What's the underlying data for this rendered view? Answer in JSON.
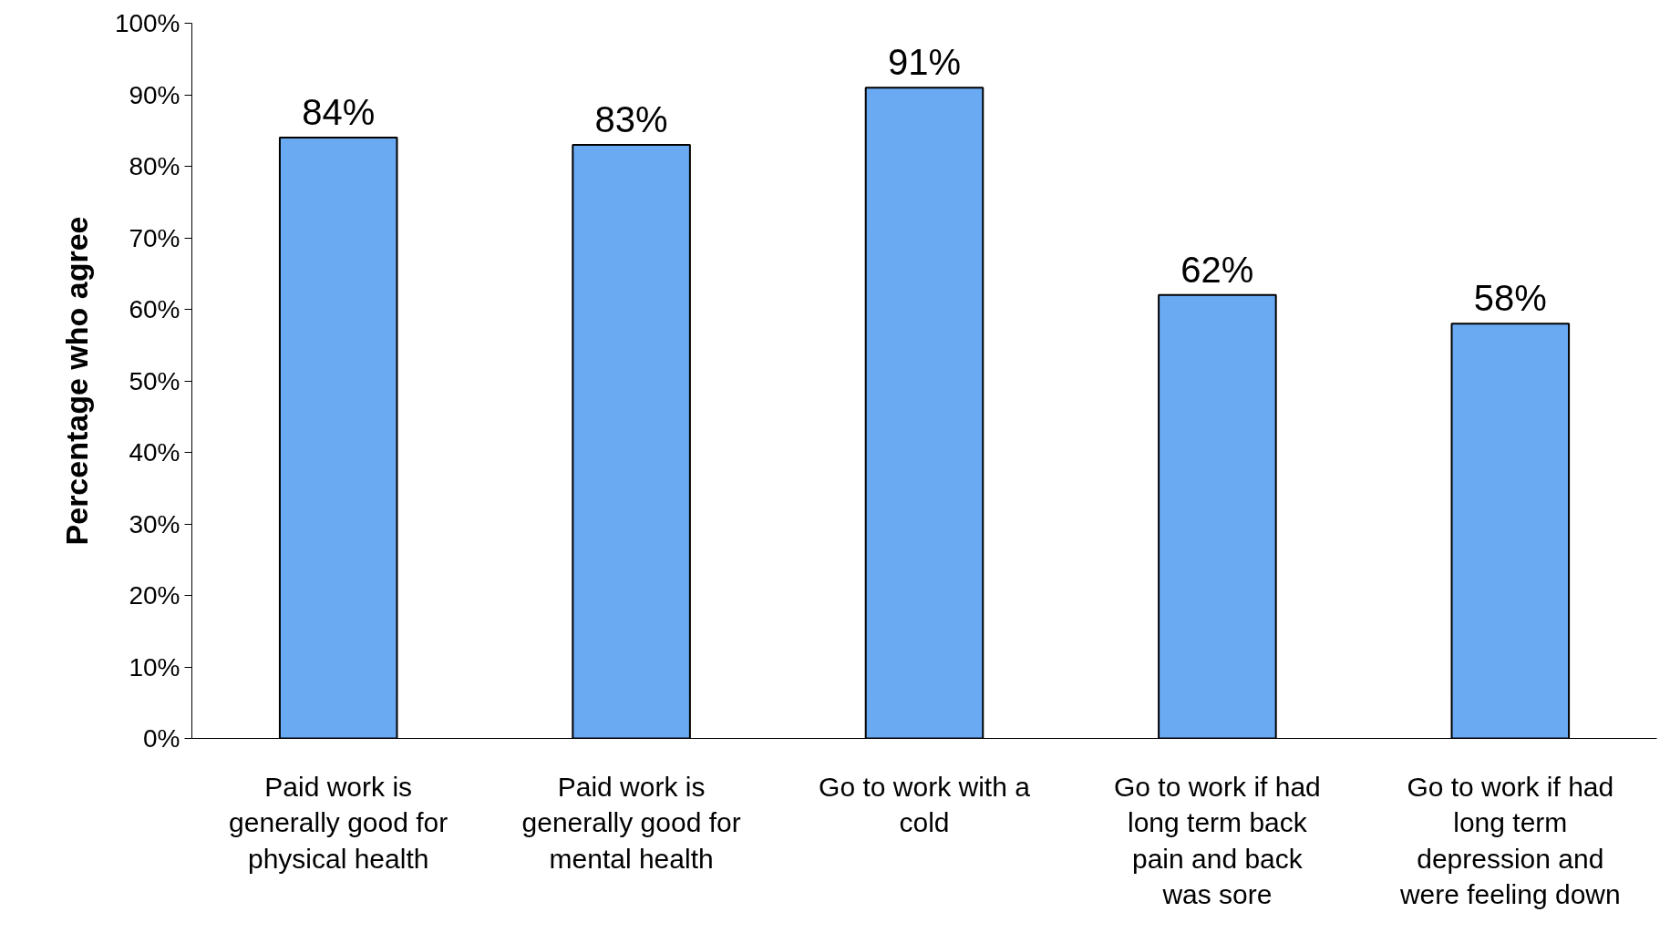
{
  "chart_data": {
    "type": "bar",
    "ylabel": "Percentage who agree",
    "categories": [
      "Paid work is\ngenerally good for\nphysical health",
      "Paid work is\ngenerally good for\nmental health",
      "Go to work with a\ncold",
      "Go to work if had\nlong term back\npain and back\nwas sore",
      "Go to work if had\nlong term\ndepression and\nwere feeling down"
    ],
    "values": [
      84,
      83,
      91,
      62,
      58
    ],
    "color": "#6aaaf2",
    "ylim": [
      0,
      100
    ],
    "yticks": [
      {
        "value": 0,
        "label": "0%"
      },
      {
        "value": 10,
        "label": "10%"
      },
      {
        "value": 20,
        "label": "20%"
      },
      {
        "value": 30,
        "label": "30%"
      },
      {
        "value": 40,
        "label": "40%"
      },
      {
        "value": 50,
        "label": "50%"
      },
      {
        "value": 60,
        "label": "60%"
      },
      {
        "value": 70,
        "label": "70%"
      },
      {
        "value": 80,
        "label": "80%"
      },
      {
        "value": 90,
        "label": "90%"
      },
      {
        "value": 100,
        "label": "100%"
      }
    ],
    "value_labels": [
      "84%",
      "83%",
      "91%",
      "62%",
      "58%"
    ],
    "grid": false
  }
}
